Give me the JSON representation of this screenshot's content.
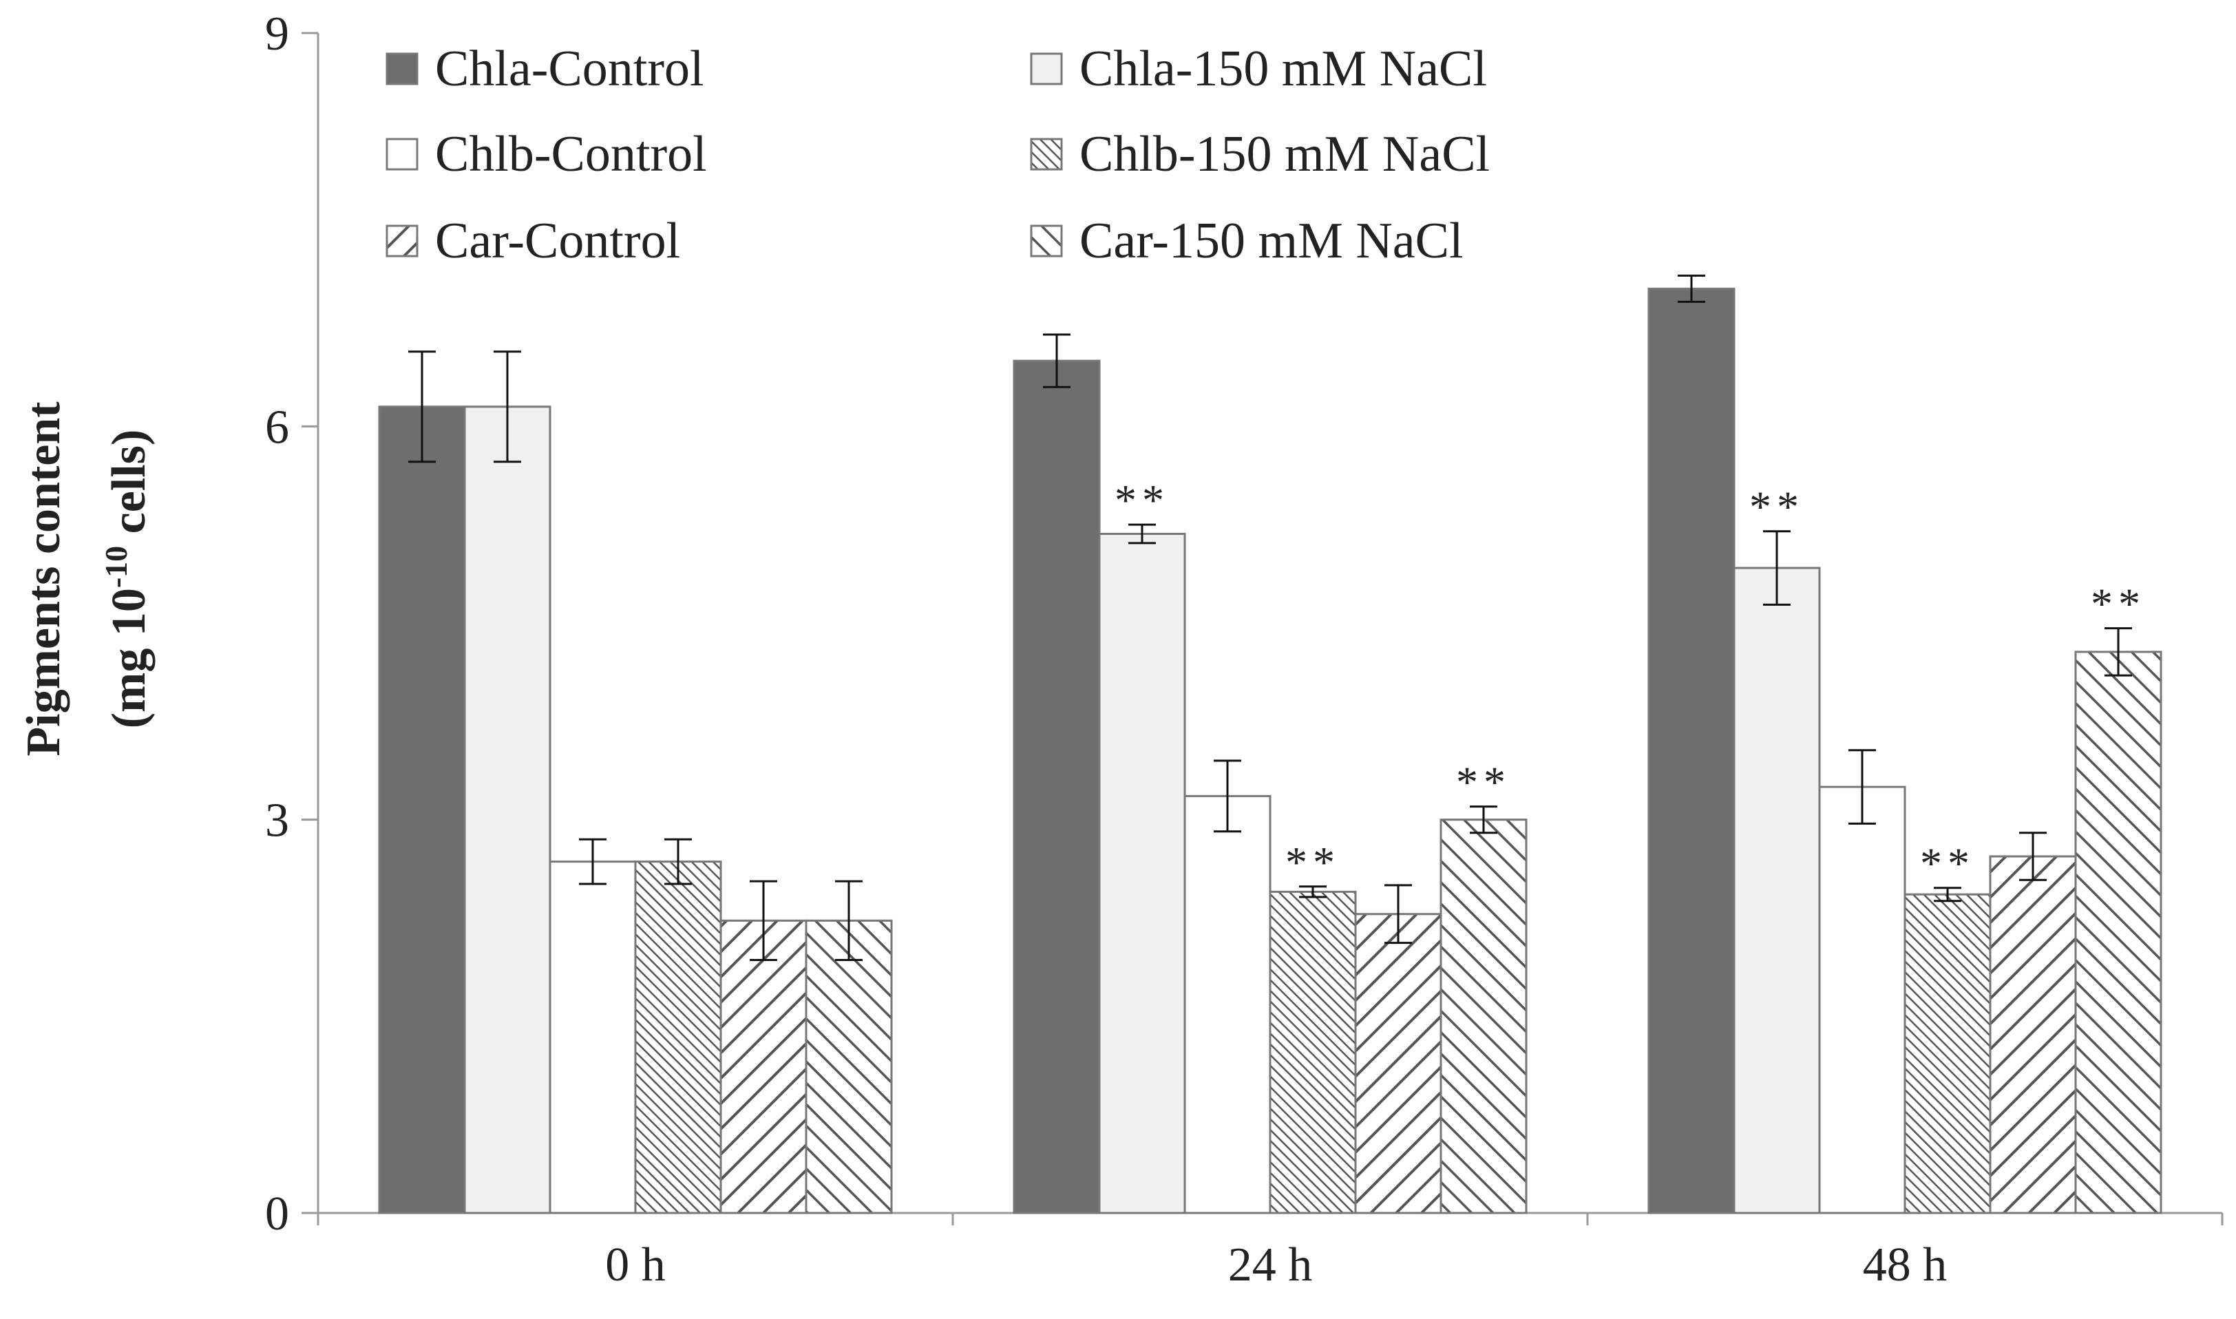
{
  "chart_data": {
    "type": "bar",
    "title": "",
    "xlabel": "",
    "ylabel": "Pigments content",
    "ylabel_unit": {
      "prefix": "(mg  10",
      "exponent": "-10",
      "suffix": " cells)"
    },
    "ylim": [
      0,
      9
    ],
    "yticks": [
      0,
      3,
      6,
      9
    ],
    "grid": false,
    "legend_position": "top",
    "categories": [
      "0 h",
      "24 h",
      "48 h"
    ],
    "series": [
      {
        "name": "Chla-Control",
        "pattern": "solid-dark",
        "values": [
          6.15,
          6.5,
          7.05
        ],
        "errors": [
          0.42,
          0.2,
          0.1
        ],
        "significance": [
          "",
          "",
          ""
        ]
      },
      {
        "name": "Chla-150 mM NaCl",
        "pattern": "solid-light",
        "values": [
          6.15,
          5.18,
          4.92
        ],
        "errors": [
          0.42,
          0.07,
          0.28
        ],
        "significance": [
          "",
          "**",
          "**"
        ]
      },
      {
        "name": "Chlb-Control",
        "pattern": "white",
        "values": [
          2.68,
          3.18,
          3.25
        ],
        "errors": [
          0.17,
          0.27,
          0.28
        ],
        "significance": [
          "",
          "",
          ""
        ]
      },
      {
        "name": "Chlb-150 mM NaCl",
        "pattern": "dense-backslash",
        "values": [
          2.68,
          2.45,
          2.43
        ],
        "errors": [
          0.17,
          0.04,
          0.05
        ],
        "significance": [
          "",
          "**",
          "**"
        ]
      },
      {
        "name": "Car-Control",
        "pattern": "slash",
        "values": [
          2.23,
          2.28,
          2.72
        ],
        "errors": [
          0.3,
          0.22,
          0.18
        ],
        "significance": [
          "",
          "",
          ""
        ]
      },
      {
        "name": "Car-150 mM NaCl",
        "pattern": "backslash",
        "values": [
          2.23,
          3.0,
          4.28
        ],
        "errors": [
          0.3,
          0.1,
          0.18
        ],
        "significance": [
          "",
          "**",
          "**"
        ]
      }
    ]
  },
  "colors": {
    "dark_fill": "#6e6e6e",
    "light_fill": "#f0f0f0",
    "bar_stroke": "#777777",
    "axis": "#999999",
    "hatch": "#555555",
    "text": "#222222"
  }
}
